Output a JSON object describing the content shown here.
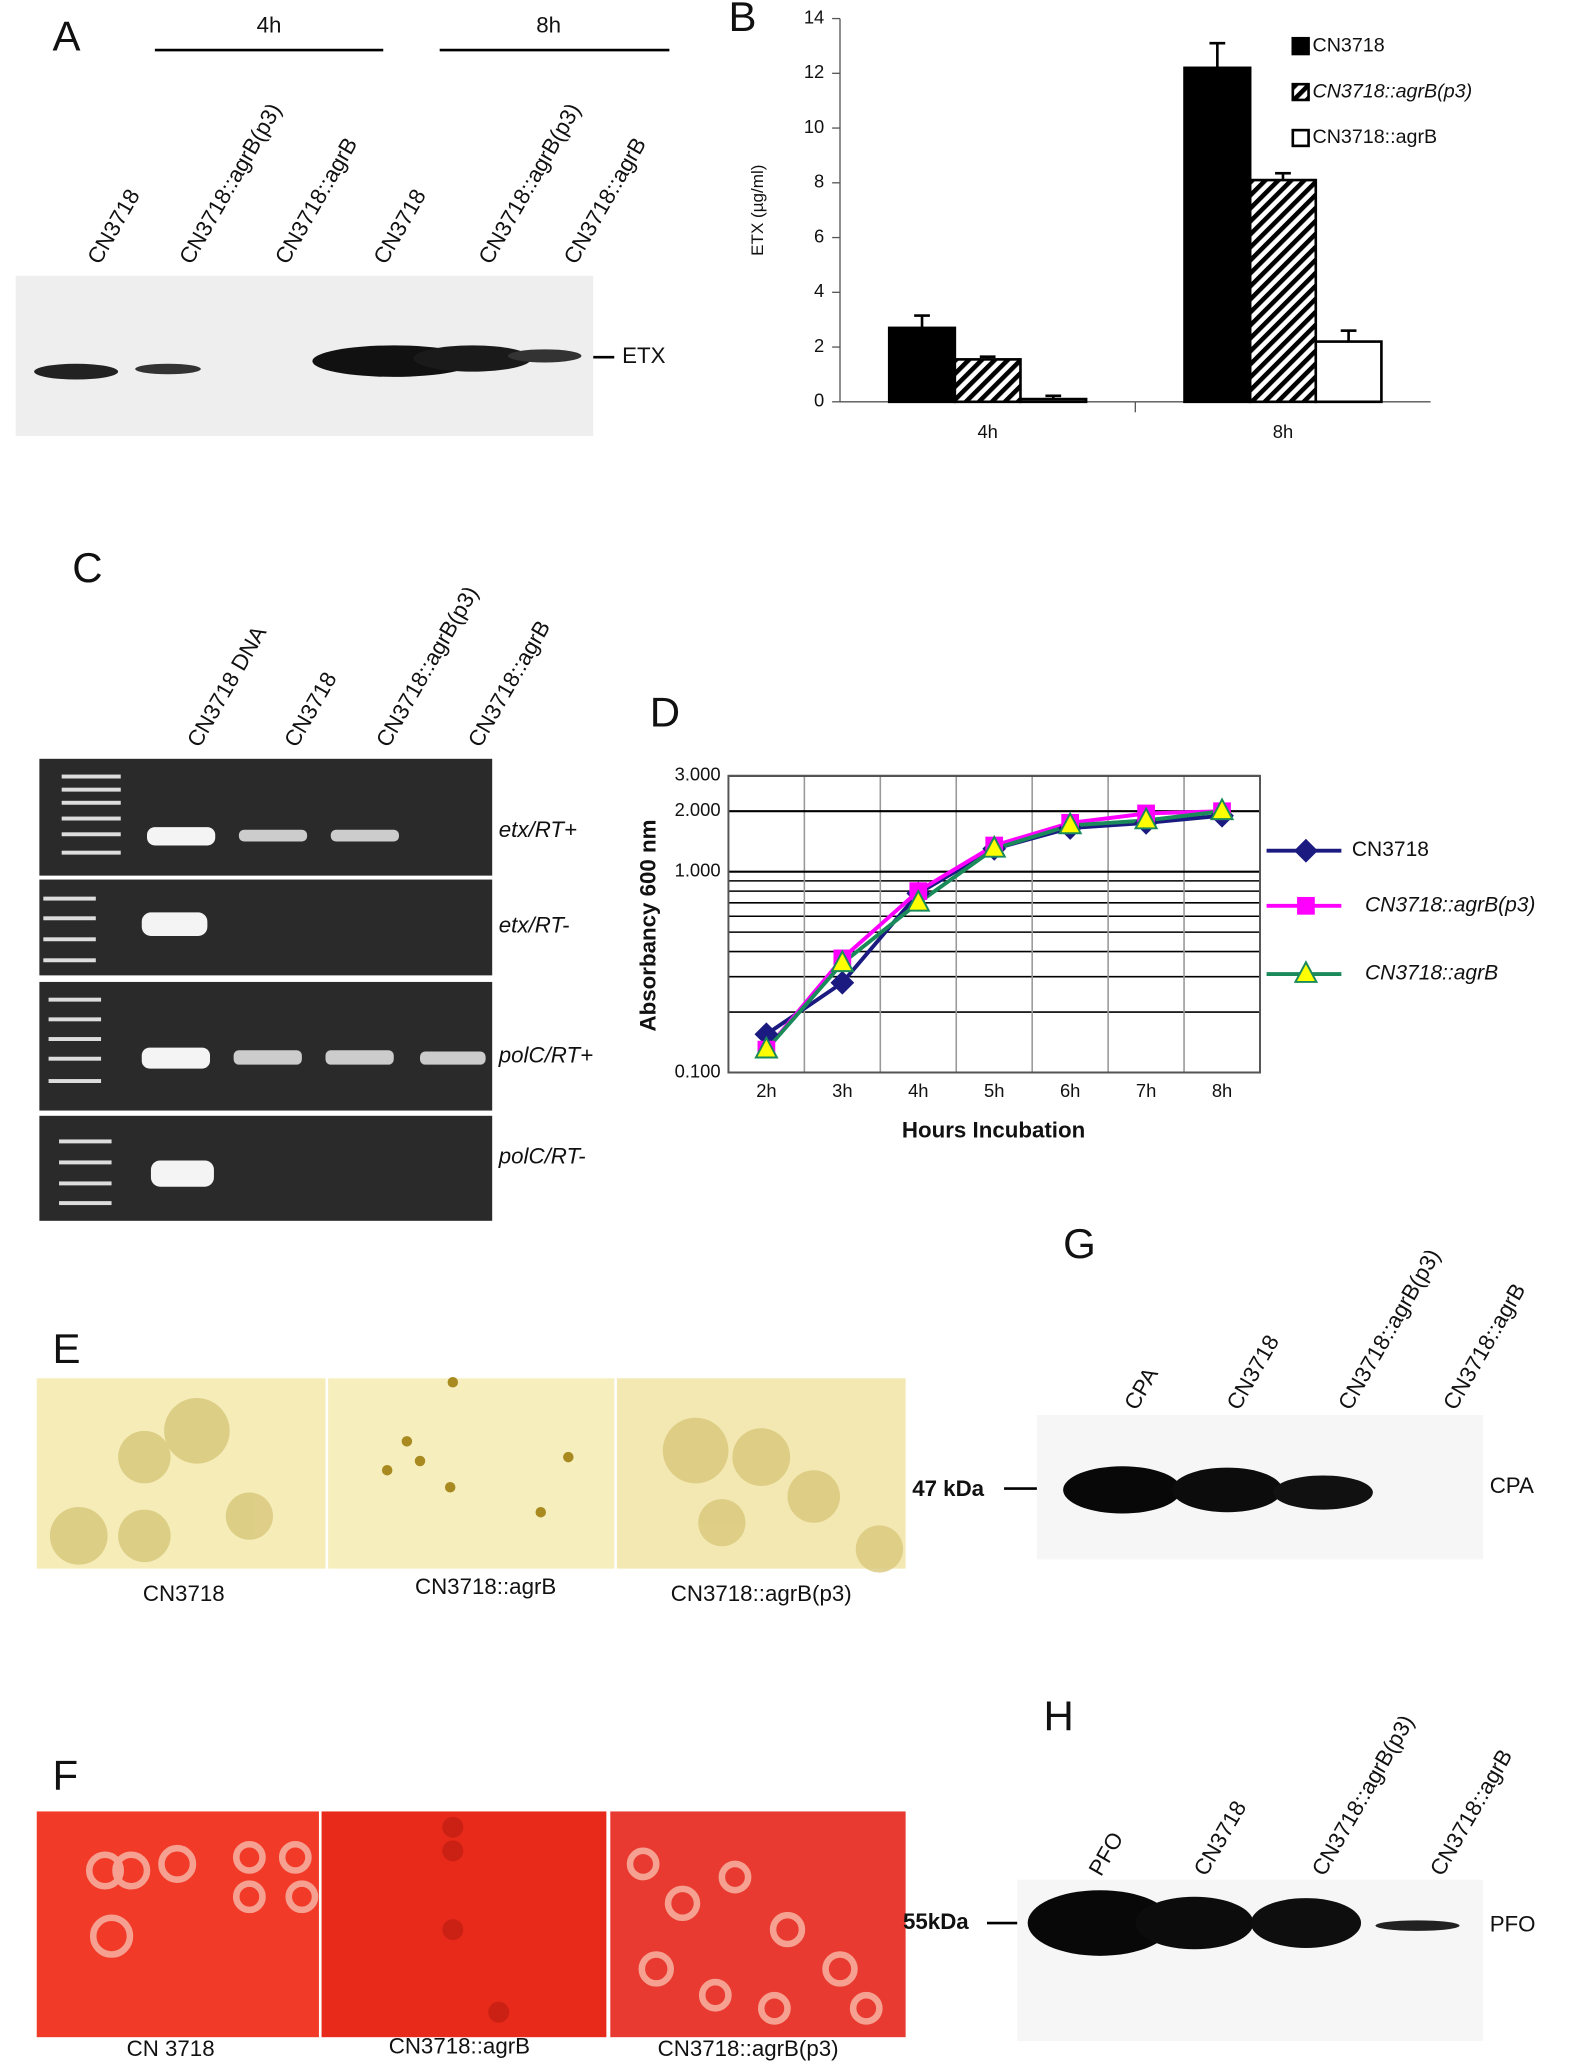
{
  "panels": {
    "A": {
      "label": "A",
      "time_labels": [
        "4h",
        "8h"
      ],
      "lanes": [
        "CN3718",
        "CN3718::agrB(p3)",
        "CN3718::agrB",
        "CN3718",
        "CN3718::agrB(p3)",
        "CN3718::agrB"
      ],
      "band_label": "ETX"
    },
    "B": {
      "label": "B"
    },
    "C": {
      "label": "C",
      "lanes": [
        "CN3718 DNA",
        "CN3718",
        "CN3718::agrB(p3)",
        "CN3718::agrB"
      ],
      "rows": [
        "etx/RT+",
        "etx/RT-",
        "polC/RT+",
        "polC/RT-"
      ]
    },
    "D": {
      "label": "D"
    },
    "E": {
      "label": "E",
      "captions": [
        "CN3718",
        "CN3718::agrB",
        "CN3718::agrB(p3)"
      ]
    },
    "F": {
      "label": "F",
      "captions": [
        "CN 3718",
        "CN3718::agrB",
        "CN3718::agrB(p3)"
      ]
    },
    "G": {
      "label": "G",
      "lanes": [
        "CPA",
        "CN3718",
        "CN3718::agrB(p3)",
        "CN3718::agrB"
      ],
      "marker": "47 kDa",
      "band_label": "CPA"
    },
    "H": {
      "label": "H",
      "lanes": [
        "PFO",
        "CN3718",
        "CN3718::agrB(p3)",
        "CN3718::agrB"
      ],
      "marker": "55kDa",
      "band_label": "PFO"
    }
  },
  "chart_data": [
    {
      "type": "bar",
      "y_label": "ETX (µg/ml)",
      "categories": [
        "4h",
        "8h"
      ],
      "series": [
        {
          "name": "CN3718",
          "color": "#000000",
          "values": [
            2.7,
            12.2
          ],
          "errors": [
            0.45,
            0.9
          ]
        },
        {
          "name": "CN3718::agrB(p3)",
          "color": "#000000",
          "pattern": "hatched",
          "values": [
            1.55,
            8.1
          ],
          "errors": [
            0.1,
            0.25
          ]
        },
        {
          "name": "CN3718::agrB",
          "color": "#ffffff",
          "values": [
            0.1,
            2.2
          ],
          "errors": [
            0.12,
            0.4
          ]
        }
      ],
      "ylim": [
        0,
        14
      ],
      "yticks": [
        0,
        2,
        4,
        6,
        8,
        10,
        12,
        14
      ]
    },
    {
      "type": "line",
      "y_label": "Absorbancy 600 nm",
      "x_label": "Hours Incubation",
      "log_y": true,
      "grid": true,
      "categories": [
        "2h",
        "3h",
        "4h",
        "5h",
        "6h",
        "7h",
        "8h"
      ],
      "series": [
        {
          "name": "CN3718",
          "color": "#1a1a80",
          "marker": "diamond",
          "values": [
            0.155,
            0.28,
            0.78,
            1.3,
            1.65,
            1.75,
            1.9
          ]
        },
        {
          "name": "CN3718::agrB(p3)",
          "color": "#ff00ff",
          "marker": "square",
          "values": [
            0.13,
            0.37,
            0.8,
            1.35,
            1.75,
            1.95,
            2.0
          ]
        },
        {
          "name": "CN3718::agrB",
          "color": "#1a8a5a",
          "marker": "triangle",
          "marker_color": "#ffff00",
          "values": [
            0.13,
            0.35,
            0.7,
            1.3,
            1.7,
            1.8,
            2.0
          ]
        }
      ],
      "ylim": [
        0.1,
        3
      ],
      "yticks": [
        {
          "value": 0.1,
          "label": "0.100"
        },
        {
          "value": 1,
          "label": "1.000"
        },
        {
          "value": 2,
          "label": "2.000"
        },
        {
          "value": 3,
          "label": "3.000"
        }
      ]
    }
  ]
}
